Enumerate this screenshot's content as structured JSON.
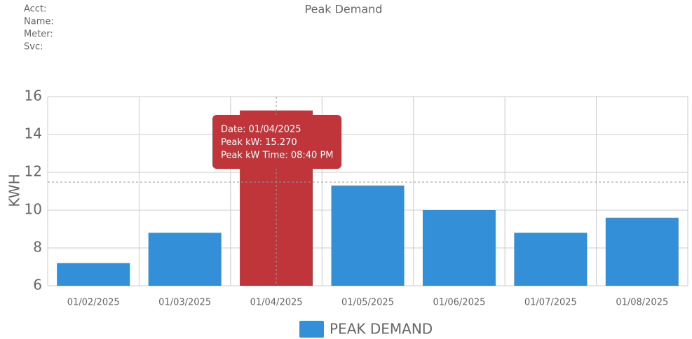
{
  "header": {
    "fields": [
      "Acct:",
      "Name:",
      "Meter:",
      "Svc:"
    ]
  },
  "chart_data": {
    "type": "bar",
    "title": "Peak Demand",
    "y_label": "KWH",
    "categories": [
      "01/02/2025",
      "01/03/2025",
      "01/04/2025",
      "01/05/2025",
      "01/06/2025",
      "01/07/2025",
      "01/08/2025"
    ],
    "series": [
      {
        "name": "PEAK DEMAND",
        "color": "#3390d8",
        "values": [
          7.2,
          8.8,
          15.27,
          11.3,
          10.0,
          8.8,
          9.6
        ]
      }
    ],
    "highlight_index": 2,
    "highlight_color": "#c0353a",
    "tooltip": [
      "Date: 01/04/2025",
      "Peak kW: 15.270",
      "Peak kW Time: 08:40 PM"
    ],
    "ylim": [
      6,
      16
    ],
    "yticks": [
      6,
      8,
      10,
      12,
      14,
      16
    ],
    "grid": true,
    "legend": "bottom"
  }
}
